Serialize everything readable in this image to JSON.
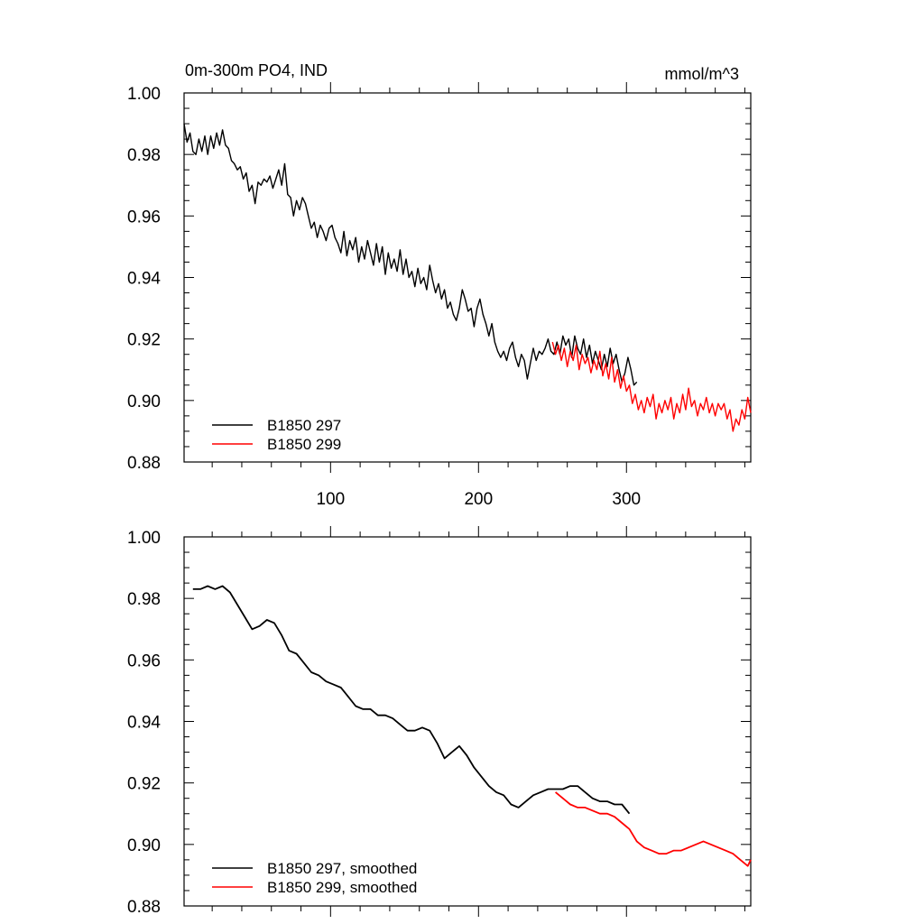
{
  "chart_data": [
    {
      "type": "line",
      "title_left": "0m-300m PO4, IND",
      "title_right": "mmol/m^3",
      "xlim": [
        1,
        384
      ],
      "ylim": [
        0.88,
        1.0
      ],
      "yticks": [
        "1.00",
        "0.98",
        "0.96",
        "0.94",
        "0.92",
        "0.90",
        "0.88"
      ],
      "xticks": [
        "100",
        "200",
        "300"
      ],
      "legend_position": "bottom-left",
      "series": [
        {
          "name": "B1850 297",
          "color": "#000000",
          "x": [
            1,
            3,
            5,
            7,
            9,
            11,
            13,
            15,
            17,
            19,
            21,
            23,
            25,
            27,
            29,
            31,
            33,
            35,
            37,
            39,
            41,
            43,
            45,
            47,
            49,
            51,
            53,
            55,
            57,
            59,
            61,
            63,
            65,
            67,
            69,
            71,
            73,
            75,
            77,
            79,
            81,
            83,
            85,
            87,
            89,
            91,
            93,
            95,
            97,
            99,
            101,
            103,
            105,
            107,
            109,
            111,
            113,
            115,
            117,
            119,
            121,
            123,
            125,
            127,
            129,
            131,
            133,
            135,
            137,
            139,
            141,
            143,
            145,
            147,
            149,
            151,
            153,
            155,
            157,
            159,
            161,
            163,
            165,
            167,
            169,
            171,
            173,
            175,
            177,
            179,
            181,
            183,
            185,
            187,
            189,
            191,
            193,
            195,
            197,
            199,
            201,
            203,
            205,
            207,
            209,
            211,
            213,
            215,
            217,
            219,
            221,
            223,
            225,
            227,
            229,
            231,
            233,
            235,
            237,
            239,
            241,
            243,
            245,
            247,
            249,
            251,
            253,
            255,
            257,
            259,
            261,
            263,
            265,
            267,
            269,
            271,
            273,
            275,
            277,
            279,
            281,
            283,
            285,
            287,
            289,
            291,
            293,
            295,
            297,
            299,
            301,
            303,
            305,
            307
          ],
          "values": [
            0.99,
            0.984,
            0.987,
            0.981,
            0.98,
            0.985,
            0.981,
            0.986,
            0.98,
            0.986,
            0.982,
            0.987,
            0.983,
            0.988,
            0.983,
            0.982,
            0.978,
            0.977,
            0.975,
            0.976,
            0.972,
            0.974,
            0.968,
            0.97,
            0.964,
            0.971,
            0.97,
            0.972,
            0.971,
            0.973,
            0.969,
            0.972,
            0.975,
            0.97,
            0.977,
            0.967,
            0.966,
            0.96,
            0.965,
            0.962,
            0.966,
            0.964,
            0.96,
            0.956,
            0.958,
            0.953,
            0.957,
            0.955,
            0.952,
            0.956,
            0.957,
            0.953,
            0.951,
            0.948,
            0.955,
            0.947,
            0.952,
            0.949,
            0.953,
            0.945,
            0.95,
            0.946,
            0.952,
            0.948,
            0.944,
            0.951,
            0.945,
            0.95,
            0.941,
            0.948,
            0.943,
            0.946,
            0.942,
            0.949,
            0.941,
            0.946,
            0.94,
            0.942,
            0.937,
            0.943,
            0.938,
            0.94,
            0.936,
            0.944,
            0.939,
            0.935,
            0.938,
            0.933,
            0.936,
            0.93,
            0.932,
            0.928,
            0.926,
            0.93,
            0.936,
            0.933,
            0.929,
            0.93,
            0.924,
            0.93,
            0.933,
            0.928,
            0.925,
            0.921,
            0.925,
            0.919,
            0.916,
            0.914,
            0.916,
            0.913,
            0.917,
            0.919,
            0.914,
            0.911,
            0.915,
            0.913,
            0.907,
            0.912,
            0.917,
            0.913,
            0.916,
            0.915,
            0.917,
            0.92,
            0.916,
            0.915,
            0.919,
            0.915,
            0.921,
            0.918,
            0.92,
            0.914,
            0.921,
            0.917,
            0.915,
            0.92,
            0.914,
            0.918,
            0.912,
            0.916,
            0.913,
            0.91,
            0.915,
            0.911,
            0.917,
            0.912,
            0.915,
            0.91,
            0.906,
            0.909,
            0.914,
            0.91,
            0.905,
            0.906
          ]
        },
        {
          "name": "B1850 299",
          "color": "#ff0000",
          "x": [
            250,
            252,
            254,
            256,
            258,
            260,
            262,
            264,
            266,
            268,
            270,
            272,
            274,
            276,
            278,
            280,
            282,
            284,
            286,
            288,
            290,
            292,
            294,
            296,
            298,
            300,
            302,
            304,
            306,
            308,
            310,
            312,
            314,
            316,
            318,
            320,
            322,
            324,
            326,
            328,
            330,
            332,
            334,
            336,
            338,
            340,
            342,
            344,
            346,
            348,
            350,
            352,
            354,
            356,
            358,
            360,
            362,
            364,
            366,
            368,
            370,
            372,
            374,
            376,
            378,
            380,
            382,
            384
          ],
          "values": [
            0.919,
            0.915,
            0.918,
            0.913,
            0.917,
            0.911,
            0.916,
            0.913,
            0.918,
            0.91,
            0.915,
            0.912,
            0.914,
            0.909,
            0.913,
            0.91,
            0.916,
            0.908,
            0.912,
            0.907,
            0.914,
            0.906,
            0.91,
            0.904,
            0.908,
            0.903,
            0.905,
            0.899,
            0.902,
            0.897,
            0.9,
            0.896,
            0.901,
            0.898,
            0.902,
            0.894,
            0.899,
            0.896,
            0.9,
            0.897,
            0.901,
            0.894,
            0.899,
            0.896,
            0.902,
            0.897,
            0.904,
            0.898,
            0.9,
            0.895,
            0.899,
            0.897,
            0.901,
            0.896,
            0.899,
            0.895,
            0.899,
            0.897,
            0.899,
            0.894,
            0.897,
            0.89,
            0.894,
            0.892,
            0.897,
            0.894,
            0.901,
            0.896
          ]
        }
      ]
    },
    {
      "type": "line",
      "xlim": [
        1,
        384
      ],
      "ylim": [
        0.88,
        1.0
      ],
      "yticks": [
        "1.00",
        "0.98",
        "0.96",
        "0.94",
        "0.92",
        "0.90",
        "0.88"
      ],
      "legend_position": "bottom-left",
      "series": [
        {
          "name": "B1850 297, smoothed",
          "color": "#000000",
          "x": [
            7,
            12,
            17,
            22,
            27,
            32,
            37,
            42,
            47,
            52,
            57,
            62,
            67,
            72,
            77,
            82,
            87,
            92,
            97,
            102,
            107,
            112,
            117,
            122,
            127,
            132,
            137,
            142,
            147,
            152,
            157,
            162,
            167,
            172,
            177,
            182,
            187,
            192,
            197,
            202,
            207,
            212,
            217,
            222,
            227,
            232,
            237,
            242,
            247,
            252,
            257,
            262,
            267,
            272,
            277,
            282,
            287,
            292,
            297,
            302
          ],
          "values": [
            0.983,
            0.983,
            0.984,
            0.983,
            0.984,
            0.982,
            0.978,
            0.974,
            0.97,
            0.971,
            0.973,
            0.972,
            0.968,
            0.963,
            0.962,
            0.959,
            0.956,
            0.955,
            0.953,
            0.952,
            0.951,
            0.948,
            0.945,
            0.944,
            0.944,
            0.942,
            0.942,
            0.941,
            0.939,
            0.937,
            0.937,
            0.938,
            0.937,
            0.933,
            0.928,
            0.93,
            0.932,
            0.929,
            0.925,
            0.922,
            0.919,
            0.917,
            0.916,
            0.913,
            0.912,
            0.914,
            0.916,
            0.917,
            0.918,
            0.918,
            0.918,
            0.919,
            0.919,
            0.917,
            0.915,
            0.914,
            0.914,
            0.913,
            0.913,
            0.91
          ]
        },
        {
          "name": "B1850 299, smoothed",
          "color": "#ff0000",
          "x": [
            252,
            257,
            262,
            267,
            272,
            277,
            282,
            287,
            292,
            297,
            302,
            307,
            312,
            317,
            322,
            327,
            332,
            337,
            342,
            347,
            352,
            357,
            362,
            367,
            372,
            377,
            382,
            384
          ],
          "values": [
            0.917,
            0.915,
            0.913,
            0.912,
            0.912,
            0.911,
            0.91,
            0.91,
            0.909,
            0.907,
            0.905,
            0.901,
            0.899,
            0.898,
            0.897,
            0.897,
            0.898,
            0.898,
            0.899,
            0.9,
            0.901,
            0.9,
            0.899,
            0.898,
            0.897,
            0.895,
            0.893,
            0.895
          ]
        }
      ]
    }
  ]
}
